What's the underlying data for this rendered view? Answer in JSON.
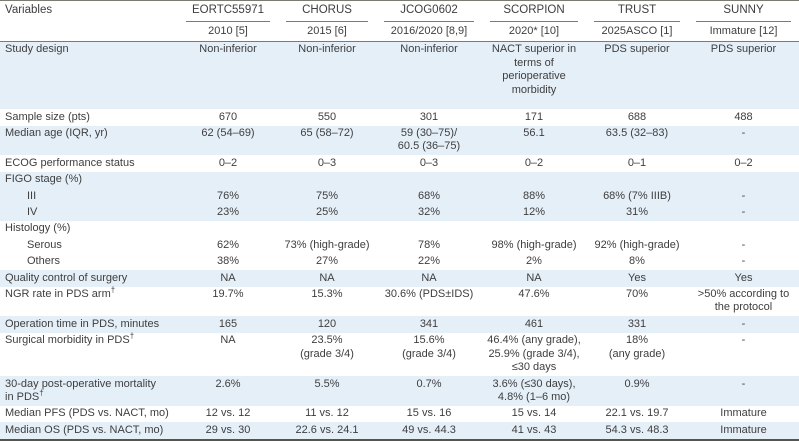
{
  "table": {
    "header": {
      "variables_label": "Variables",
      "trials": [
        {
          "name": "EORTC55971",
          "year": "2010 [5]"
        },
        {
          "name": "CHORUS",
          "year": "2015 [6]"
        },
        {
          "name": "JCOG0602",
          "year": "2016/2020 [8,9]"
        },
        {
          "name": "SCORPION",
          "year": "2020* [10]"
        },
        {
          "name": "TRUST",
          "year": "2025ASCO [1]"
        },
        {
          "name": "SUNNY",
          "year": "Immature [12]"
        }
      ]
    },
    "rows": [
      {
        "label": "Study design",
        "values": [
          "Non-inferior",
          "Non-inferior",
          "Non-inferior",
          "NACT superior in\nterms of perioperative\nmorbidity",
          "PDS superior",
          "PDS superior"
        ]
      },
      {
        "label": "Sample size (pts)",
        "values": [
          "670",
          "550",
          "301",
          "171",
          "688",
          "488"
        ]
      },
      {
        "label": "Median age (IQR, yr)",
        "values": [
          "62 (54–69)",
          "65 (58–72)",
          "59 (30–75)/\n60.5 (36–75)",
          "56.1",
          "63.5 (32–83)",
          "-"
        ]
      },
      {
        "label": "ECOG performance status",
        "values": [
          "0–2",
          "0–3",
          "0–3",
          "0–2",
          "0–1",
          "0–2"
        ]
      },
      {
        "label": "FIGO stage (%)",
        "values": [
          "",
          "",
          "",
          "",
          "",
          ""
        ]
      },
      {
        "label": "III",
        "values": [
          "76%",
          "75%",
          "68%",
          "88%",
          "68% (7% IIIB)",
          "-"
        ]
      },
      {
        "label": "IV",
        "values": [
          "23%",
          "25%",
          "32%",
          "12%",
          "31%",
          "-"
        ]
      },
      {
        "label": "Histology (%)",
        "values": [
          "",
          "",
          "",
          "",
          "",
          ""
        ]
      },
      {
        "label": "Serous",
        "values": [
          "62%",
          "73% (high-grade)",
          "78%",
          "98% (high-grade)",
          "92% (high-grade)",
          "-"
        ]
      },
      {
        "label": "Others",
        "values": [
          "38%",
          "27%",
          "22%",
          "2%",
          "8%",
          "-"
        ]
      },
      {
        "label": "Quality control of surgery",
        "values": [
          "NA",
          "NA",
          "NA",
          "NA",
          "Yes",
          "Yes"
        ]
      },
      {
        "label": "NGR rate in PDS arm",
        "label_sup": "†",
        "values": [
          "19.7%",
          "15.3%",
          "30.6% (PDS±IDS)",
          "47.6%",
          "70%",
          ">50% according to\nthe protocol"
        ]
      },
      {
        "label": "Operation time in PDS, minutes",
        "values": [
          "165",
          "120",
          "341",
          "461",
          "331",
          "-"
        ]
      },
      {
        "label": "Surgical morbidity in PDS",
        "label_sup": "†",
        "values": [
          "NA",
          "23.5%\n(grade 3/4)",
          "15.6%\n(grade 3/4)",
          "46.4% (any grade),\n25.9% (grade 3/4),\n≤30 days",
          "18%\n(any grade)",
          "-"
        ]
      },
      {
        "label": "30-day post-operative mortality\n in PDS",
        "label_sup": "†",
        "values": [
          "2.6%",
          "5.5%",
          "0.7%",
          "3.6% (≤30 days),\n4.8% (1–6 mo)",
          "0.9%",
          "-"
        ]
      },
      {
        "label": "Median PFS (PDS vs. NACT, mo)",
        "values": [
          "12 vs. 12",
          "11 vs. 12",
          "15 vs. 16",
          "15 vs. 14",
          "22.1 vs. 19.7",
          "Immature"
        ]
      },
      {
        "label": "Median OS (PDS vs. NACT, mo)",
        "values": [
          "29 vs. 30",
          "22.6 vs. 24.1",
          "49 vs. 44.3",
          "41 vs. 43",
          "54.3 vs. 48.3",
          "Immature"
        ]
      }
    ]
  },
  "colors": {
    "stripe": "#e5eff8",
    "text": "#3e3e3e",
    "rule": "#7c7b73",
    "heavy_rule": "#56554d"
  }
}
